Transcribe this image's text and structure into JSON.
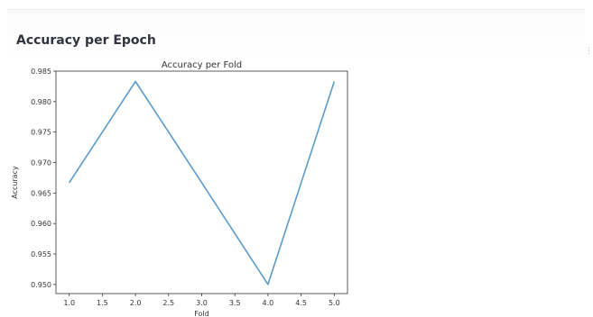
{
  "section": {
    "title": "Accuracy per Epoch"
  },
  "chart_data": {
    "type": "line",
    "title": "Accuracy per Fold",
    "xlabel": "Fold",
    "ylabel": "Accuracy",
    "xlim": [
      0.8,
      5.2
    ],
    "ylim": [
      0.9485,
      0.985
    ],
    "xticks": [
      "1.0",
      "1.5",
      "2.0",
      "2.5",
      "3.0",
      "3.5",
      "4.0",
      "4.5",
      "5.0"
    ],
    "yticks": [
      "0.950",
      "0.955",
      "0.960",
      "0.965",
      "0.970",
      "0.975",
      "0.980",
      "0.985"
    ],
    "grid": false,
    "series": [
      {
        "x": [
          1,
          2,
          3,
          4,
          5
        ],
        "values": [
          0.9667,
          0.9833,
          0.9667,
          0.95,
          0.9833
        ],
        "color": "#5b9bc9"
      }
    ]
  }
}
